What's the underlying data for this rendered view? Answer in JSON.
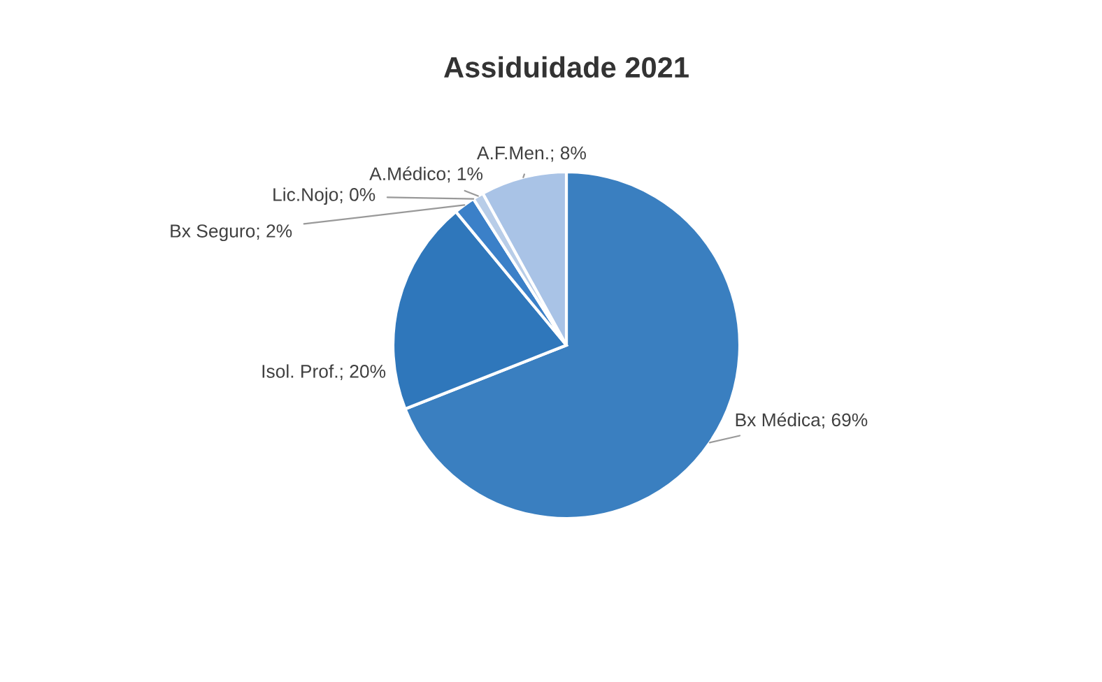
{
  "chart_data": {
    "type": "pie",
    "title": "Assiduidade 2021",
    "categories": [
      "Bx Médica",
      "Isol. Prof.",
      "Bx Seguro",
      "Lic.Nojo",
      "A.Médico",
      "A.F.Men."
    ],
    "values": [
      69,
      20,
      2,
      0,
      1,
      8
    ],
    "value_labels": [
      "69%",
      "20%",
      "2%",
      "0%",
      "1%",
      "8%"
    ],
    "colors": [
      "#3a7fc0",
      "#2f77bb",
      "#3b80c8",
      "#c5d6ec",
      "#b8cde8",
      "#a9c3e6"
    ]
  }
}
